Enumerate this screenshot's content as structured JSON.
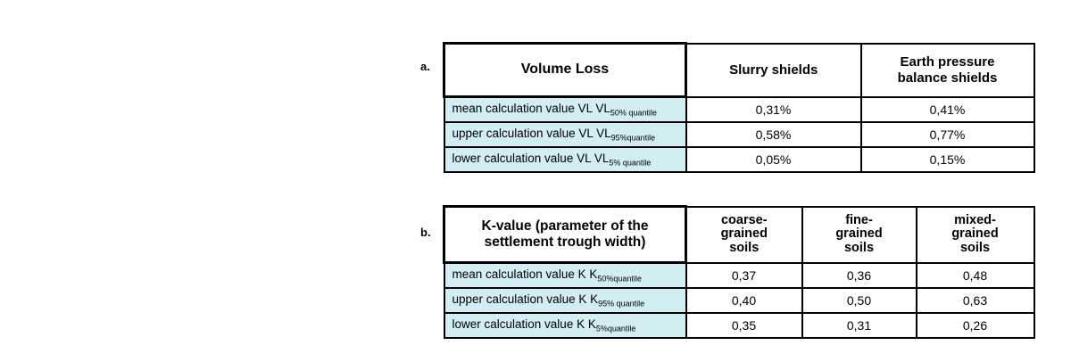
{
  "colors": {
    "page_bg": "#ffffff",
    "row_label_bg": "#d2eef2",
    "border": "#000000"
  },
  "figure_a": {
    "label": "a.",
    "title": "Volume Loss",
    "columns": {
      "col2": "Slurry shields",
      "col3_lines": [
        "Earth pressure",
        "balance shields"
      ]
    },
    "rows": [
      {
        "label_main": "mean calculation value VL VL",
        "label_sub": "50% quantile",
        "values": [
          "0,31%",
          "0,41%"
        ]
      },
      {
        "label_main": "upper calculation value VL VL",
        "label_sub": "95%quantile",
        "values": [
          "0,58%",
          "0,77%"
        ]
      },
      {
        "label_main": "lower calculation value VL VL",
        "label_sub": "5% quantile",
        "values": [
          "0,05%",
          "0,15%"
        ]
      }
    ]
  },
  "figure_b": {
    "label": "b.",
    "title_lines": [
      "K-value (parameter of the",
      "settlement trough width)"
    ],
    "columns": {
      "col2_lines": [
        "coarse-",
        "grained",
        "soils"
      ],
      "col3_lines": [
        "fine-",
        "grained",
        "soils"
      ],
      "col4_lines": [
        "mixed-",
        "grained",
        "soils"
      ]
    },
    "rows": [
      {
        "label_main": "mean calculation value K K",
        "label_sub": "50%quantile",
        "values": [
          "0,37",
          "0,36",
          "0,48"
        ]
      },
      {
        "label_main": "upper calculation value K K",
        "label_sub": "95% quantile",
        "values": [
          "0,40",
          "0,50",
          "0,63"
        ]
      },
      {
        "label_main": "lower calculation value K K",
        "label_sub": "5%quantile",
        "values": [
          "0,35",
          "0,31",
          "0,26"
        ]
      }
    ]
  }
}
